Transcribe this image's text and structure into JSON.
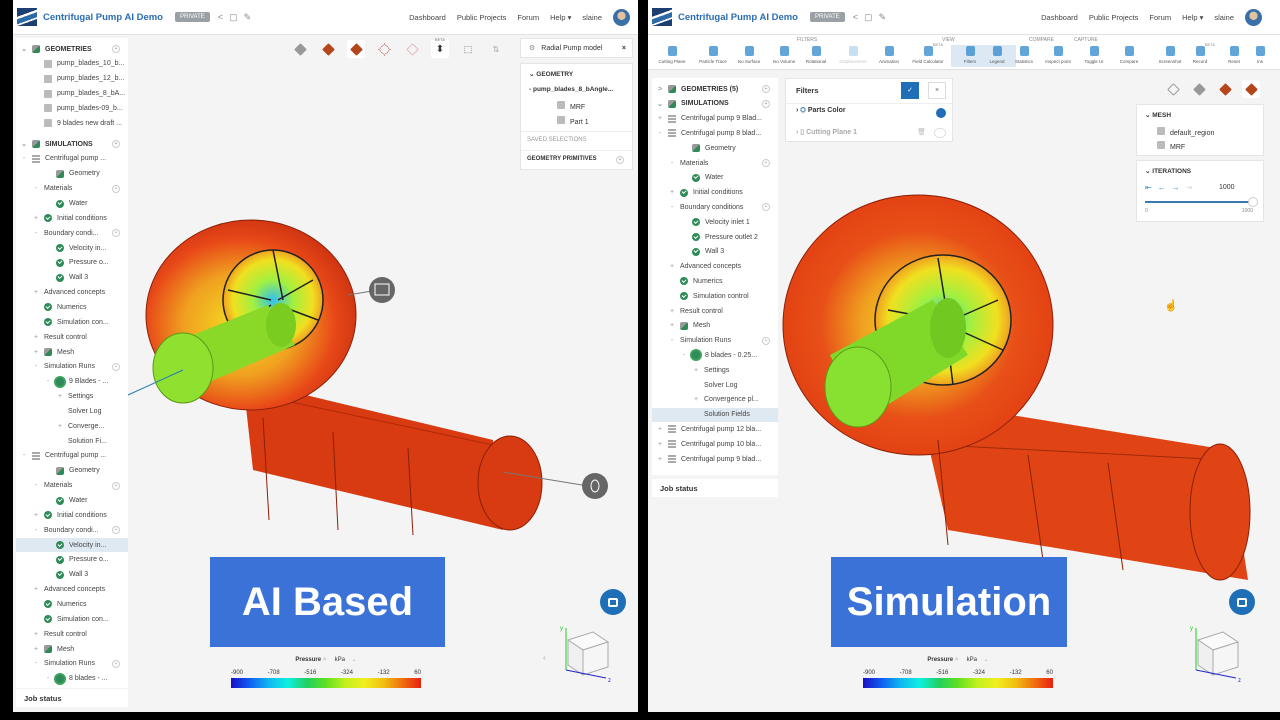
{
  "colors": {
    "brand": "#2a6db5",
    "banner": "#3a72d8",
    "check": "#2e8b57",
    "selected": "#dfe9f2"
  },
  "header": {
    "title": "Centrifugal Pump AI Demo",
    "private_badge": "PRIVATE",
    "nav": [
      "Dashboard",
      "Public Projects",
      "Forum",
      "Help"
    ],
    "user": "slaine"
  },
  "left": {
    "tree": [
      {
        "label": "GEOMETRIES",
        "head": true,
        "toggle": "v",
        "icon": "geo",
        "add": true
      },
      {
        "label": "pump_blades_10_b...",
        "d": 1,
        "icon": "part"
      },
      {
        "label": "pump_blades_12_b...",
        "d": 1,
        "icon": "part"
      },
      {
        "label": "pump_blades_8_bA...",
        "d": 1,
        "icon": "part"
      },
      {
        "label": "pump_blades-09_b...",
        "d": 1,
        "icon": "part"
      },
      {
        "label": "9 blades new draft ...",
        "d": 1,
        "icon": "part"
      },
      {
        "label": "SIMULATIONS",
        "head": true,
        "toggle": "v",
        "icon": "geo",
        "add": true,
        "gap": true
      },
      {
        "label": "Centrifugal pump ...",
        "d": 0,
        "toggle": "-",
        "icon": "sim"
      },
      {
        "label": "Geometry",
        "d": 2,
        "icon": "geo"
      },
      {
        "label": "Materials",
        "d": 1,
        "toggle": "-",
        "add": true
      },
      {
        "label": "Water",
        "d": 2,
        "icon": "check"
      },
      {
        "label": "Initial conditions",
        "d": 1,
        "toggle": "+",
        "icon": "check"
      },
      {
        "label": "Boundary condi...",
        "d": 1,
        "toggle": "-",
        "add": true
      },
      {
        "label": "Velocity in...",
        "d": 2,
        "icon": "check"
      },
      {
        "label": "Pressure o...",
        "d": 2,
        "icon": "check"
      },
      {
        "label": "Wall 3",
        "d": 2,
        "icon": "check"
      },
      {
        "label": "Advanced concepts",
        "d": 1,
        "toggle": "+"
      },
      {
        "label": "Numerics",
        "d": 1,
        "icon": "check"
      },
      {
        "label": "Simulation con...",
        "d": 1,
        "icon": "check"
      },
      {
        "label": "Result control",
        "d": 1,
        "toggle": "+"
      },
      {
        "label": "Mesh",
        "d": 1,
        "toggle": "+",
        "icon": "mesh"
      },
      {
        "label": "Simulation Runs",
        "d": 1,
        "toggle": "-",
        "add": true
      },
      {
        "label": "9 Blades - ...",
        "d": 2,
        "toggle": "-",
        "icon": "gear"
      },
      {
        "label": "Settings",
        "d": 3,
        "toggle": "+"
      },
      {
        "label": "Solver Log",
        "d": 3
      },
      {
        "label": "Converge...",
        "d": 3,
        "toggle": "+"
      },
      {
        "label": "Solution Fi...",
        "d": 3
      },
      {
        "label": "Centrifugal pump ...",
        "d": 0,
        "toggle": "-",
        "icon": "sim"
      },
      {
        "label": "Geometry",
        "d": 2,
        "icon": "geo"
      },
      {
        "label": "Materials",
        "d": 1,
        "toggle": "-",
        "add": true
      },
      {
        "label": "Water",
        "d": 2,
        "icon": "check"
      },
      {
        "label": "Initial conditions",
        "d": 1,
        "toggle": "+",
        "icon": "check"
      },
      {
        "label": "Boundary condi...",
        "d": 1,
        "toggle": "-",
        "add": true
      },
      {
        "label": "Velocity in...",
        "d": 2,
        "icon": "check",
        "sel": true
      },
      {
        "label": "Pressure o...",
        "d": 2,
        "icon": "check"
      },
      {
        "label": "Wall 3",
        "d": 2,
        "icon": "check"
      },
      {
        "label": "Advanced concepts",
        "d": 1,
        "toggle": "+"
      },
      {
        "label": "Numerics",
        "d": 1,
        "icon": "check"
      },
      {
        "label": "Simulation con...",
        "d": 1,
        "icon": "check"
      },
      {
        "label": "Result control",
        "d": 1,
        "toggle": "+"
      },
      {
        "label": "Mesh",
        "d": 1,
        "toggle": "+",
        "icon": "mesh"
      },
      {
        "label": "Simulation Runs",
        "d": 1,
        "toggle": "-",
        "add": true
      },
      {
        "label": "8 blades - ...",
        "d": 2,
        "toggle": "-",
        "icon": "gear"
      }
    ],
    "job_status": "Job status",
    "model_button": "Radial Pump model",
    "geometry_card": {
      "title": "GEOMETRY",
      "root": "pump_blades_8_bAngle...",
      "parts": [
        "MRF",
        "Part 1"
      ],
      "saved": "SAVED SELECTIONS",
      "primitives": "GEOMETRY PRIMITIVES"
    },
    "tool_beta": "BETA",
    "banner": "AI Based"
  },
  "right": {
    "toolbar": {
      "groups": [
        "FILTERS",
        "VIEW",
        "COMPARE",
        "CAPTURE"
      ],
      "items": [
        "Cutting Plane",
        "Particle Trace",
        "Iso Surface",
        "Iso Volume",
        "Rotational",
        "Displacement",
        "Animation",
        "Field Calculator",
        "Filters",
        "Legend",
        "Statistics",
        "Inspect point",
        "Toggle UI",
        "Compare",
        "Screenshot",
        "Record",
        "Reset",
        "Ins"
      ],
      "beta": "BETA"
    },
    "tree": [
      {
        "label": "GEOMETRIES (5)",
        "head": true,
        "toggle": ">",
        "icon": "geo",
        "add": true
      },
      {
        "label": "SIMULATIONS",
        "head": true,
        "toggle": "v",
        "icon": "geo",
        "add": true
      },
      {
        "label": "Centrifugal pump 9 Blad...",
        "d": 0,
        "toggle": "+",
        "icon": "sim"
      },
      {
        "label": "Centrifugal pump 8 blad...",
        "d": 0,
        "toggle": "-",
        "icon": "sim"
      },
      {
        "label": "Geometry",
        "d": 2,
        "icon": "geo"
      },
      {
        "label": "Materials",
        "d": 1,
        "toggle": "-",
        "add": true
      },
      {
        "label": "Water",
        "d": 2,
        "icon": "check"
      },
      {
        "label": "Initial conditions",
        "d": 1,
        "toggle": "+",
        "icon": "check"
      },
      {
        "label": "Boundary conditions",
        "d": 1,
        "toggle": "-",
        "add": true
      },
      {
        "label": "Velocity inlet 1",
        "d": 2,
        "icon": "check"
      },
      {
        "label": "Pressure outlet 2",
        "d": 2,
        "icon": "check"
      },
      {
        "label": "Wall 3",
        "d": 2,
        "icon": "check"
      },
      {
        "label": "Advanced concepts",
        "d": 1,
        "toggle": "+"
      },
      {
        "label": "Numerics",
        "d": 1,
        "icon": "check"
      },
      {
        "label": "Simulation control",
        "d": 1,
        "icon": "check"
      },
      {
        "label": "Result control",
        "d": 1,
        "toggle": "+"
      },
      {
        "label": "Mesh",
        "d": 1,
        "toggle": "+",
        "icon": "mesh"
      },
      {
        "label": "Simulation Runs",
        "d": 1,
        "toggle": "-",
        "add": true
      },
      {
        "label": "8 blades - 0.25...",
        "d": 2,
        "toggle": "-",
        "icon": "gear"
      },
      {
        "label": "Settings",
        "d": 3,
        "toggle": "+"
      },
      {
        "label": "Solver Log",
        "d": 3
      },
      {
        "label": "Convergence pl...",
        "d": 3,
        "toggle": "+"
      },
      {
        "label": "Solution Fields",
        "d": 3,
        "sel": true
      },
      {
        "label": "Centrifugal pump 12 bla...",
        "d": 0,
        "toggle": "+",
        "icon": "sim"
      },
      {
        "label": "Centrifugal pump 10 bla...",
        "d": 0,
        "toggle": "+",
        "icon": "sim"
      },
      {
        "label": "Centrifugal pump 9 blad...",
        "d": 0,
        "toggle": "+",
        "icon": "sim"
      }
    ],
    "job_status": "Job status",
    "filters": {
      "title": "Filters",
      "items": [
        {
          "label": "Parts Color",
          "enabled": true
        },
        {
          "label": "Cutting Plane 1",
          "enabled": false
        }
      ]
    },
    "mesh_card": {
      "title": "MESH",
      "items": [
        "default_region",
        "MRF"
      ]
    },
    "iterations": {
      "title": "ITERATIONS",
      "value": "1000",
      "min": "0",
      "max": "1000",
      "fraction": 1.0
    },
    "banner": "Simulation"
  },
  "legend": {
    "field": "Pressure",
    "unit": "kPa",
    "ticks": [
      "-900",
      "-708",
      "-516",
      "-324",
      "-132",
      "60"
    ],
    "min": -900,
    "max": 60
  }
}
